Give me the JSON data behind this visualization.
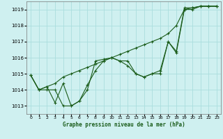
{
  "title": "Graphe pression niveau de la mer (hPa)",
  "background_color": "#cff0f0",
  "grid_color": "#aadddd",
  "line_color": "#1a5c1a",
  "marker_color": "#1a5c1a",
  "xlim": [
    -0.5,
    23.5
  ],
  "ylim": [
    1012.5,
    1019.5
  ],
  "xticks": [
    0,
    1,
    2,
    3,
    4,
    5,
    6,
    7,
    8,
    9,
    10,
    11,
    12,
    13,
    14,
    15,
    16,
    17,
    18,
    19,
    20,
    21,
    22,
    23
  ],
  "yticks": [
    1013,
    1014,
    1015,
    1016,
    1017,
    1018,
    1019
  ],
  "series1": [
    1014.9,
    1014.0,
    1014.2,
    1014.4,
    1014.8,
    1015.0,
    1015.2,
    1015.4,
    1015.6,
    1015.8,
    1016.0,
    1016.2,
    1016.4,
    1016.6,
    1016.8,
    1017.0,
    1017.2,
    1017.5,
    1018.0,
    1019.0,
    1019.1,
    1019.2,
    1019.2,
    1019.2
  ],
  "series2": [
    1014.9,
    1014.0,
    1014.2,
    1013.2,
    1014.4,
    1013.0,
    1013.3,
    1014.0,
    1015.8,
    1015.9,
    1016.0,
    1015.8,
    1015.8,
    1015.0,
    1014.8,
    1015.0,
    1015.0,
    1017.0,
    1016.3,
    1019.0,
    1019.0,
    1019.2,
    1019.2,
    1019.2
  ],
  "series3": [
    1014.9,
    1014.0,
    1014.0,
    1014.0,
    1013.0,
    1013.0,
    1013.3,
    1014.3,
    1015.2,
    1015.8,
    1016.0,
    1015.8,
    1015.5,
    1015.0,
    1014.8,
    1015.0,
    1015.2,
    1017.0,
    1016.4,
    1019.1,
    1019.1,
    1019.2,
    1019.2,
    1019.2
  ]
}
